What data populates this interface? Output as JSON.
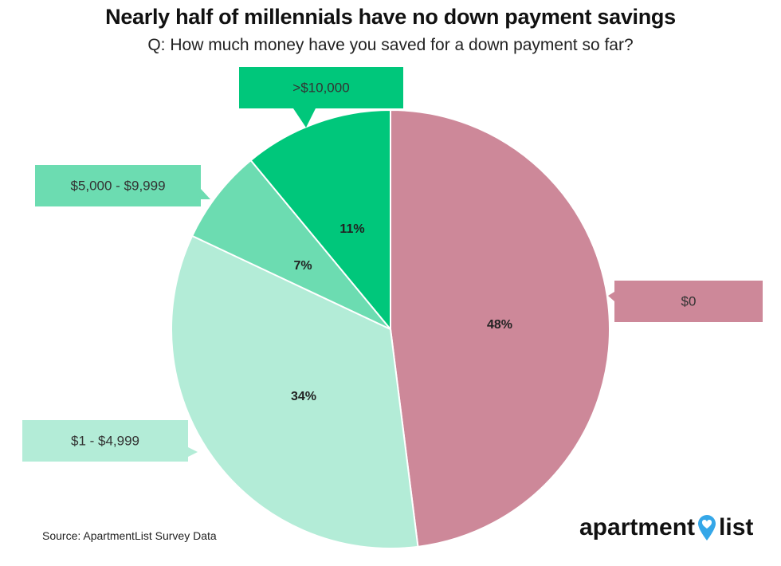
{
  "title": "Nearly half of millennials have no down payment savings",
  "subtitle": "Q: How much money have you saved for a down payment so far?",
  "source": "Source: ApartmentList Survey Data",
  "brand": {
    "word1": "apartment",
    "word2": "list",
    "icon": "map-pin-heart-icon"
  },
  "colors": {
    "zero": "#cd8899",
    "one_to_4999": "#b3ecd7",
    "five_to_9999": "#6cdcb1",
    "over_10000": "#00c77b",
    "text": "#222222"
  },
  "chart_data": {
    "type": "pie",
    "slices": [
      {
        "label": "$0",
        "value": 48,
        "value_label": "48%",
        "color": "#cd8899"
      },
      {
        "label": "$1 - $4,999",
        "value": 34,
        "value_label": "34%",
        "color": "#b3ecd7"
      },
      {
        "label": "$5,000 - $9,999",
        "value": 7,
        "value_label": "7%",
        "color": "#6cdcb1"
      },
      {
        "label": ">$10,000",
        "value": 11,
        "value_label": "11%",
        "color": "#00c77b"
      }
    ]
  }
}
